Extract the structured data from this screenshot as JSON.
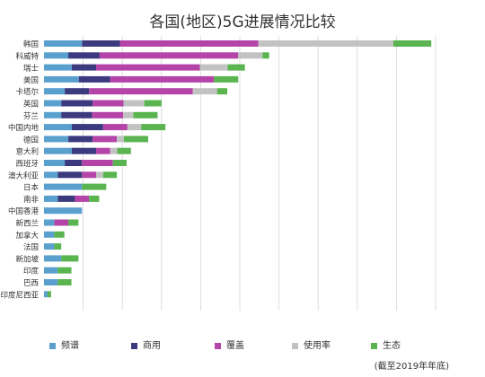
{
  "chart_data": {
    "type": "bar",
    "orientation": "horizontal",
    "stacked": true,
    "title": "各国(地区)5G进展情况比较",
    "source": "(截至2019年年底)",
    "grid": true,
    "legend_position": "bottom",
    "categories": [
      "韩国",
      "科威特",
      "瑞士",
      "美国",
      "卡塔尔",
      "英国",
      "芬兰",
      "中国内地",
      "德国",
      "意大利",
      "西班牙",
      "澳大利亚",
      "日本",
      "南非",
      "中国香港",
      "新西兰",
      "加拿大",
      "法国",
      "新加坡",
      "印度",
      "巴西",
      "印度尼西亚"
    ],
    "series": [
      {
        "name": "频谱",
        "color": "#5aa0cf",
        "values": [
          9.7,
          6.2,
          7.1,
          8.9,
          5.3,
          4.4,
          4.4,
          7.1,
          6.2,
          7.1,
          5.3,
          3.5,
          9.7,
          3.5,
          9.7,
          2.6,
          2.6,
          2.6,
          4.4,
          3.5,
          3.5,
          0.9
        ]
      },
      {
        "name": "商用",
        "color": "#3b3a7e",
        "values": [
          9.7,
          8.0,
          6.2,
          8.0,
          6.2,
          8.0,
          7.9,
          8.0,
          6.2,
          6.2,
          4.4,
          6.2,
          0,
          4.4,
          0,
          0,
          0,
          0,
          0,
          0,
          0,
          0
        ]
      },
      {
        "name": "覆盖",
        "color": "#b444a8",
        "values": [
          35.3,
          35.4,
          26.5,
          26.5,
          26.5,
          7.9,
          7.9,
          6.2,
          6.2,
          3.6,
          7.9,
          3.6,
          0,
          3.6,
          0,
          3.6,
          0,
          0,
          0,
          0,
          0,
          0
        ]
      },
      {
        "name": "使用率",
        "color": "#c2c2c2",
        "values": [
          34.5,
          6.2,
          7.1,
          0,
          6.2,
          5.3,
          2.6,
          3.5,
          1.8,
          1.8,
          0,
          1.8,
          0,
          0,
          0,
          0,
          0,
          0,
          0,
          0,
          0,
          0
        ]
      },
      {
        "name": "生态",
        "color": "#5ab550",
        "values": [
          9.7,
          1.7,
          4.4,
          6.2,
          2.6,
          4.4,
          6.2,
          6.2,
          6.2,
          3.5,
          3.5,
          3.5,
          6.2,
          2.6,
          0,
          2.6,
          2.6,
          1.8,
          4.4,
          3.5,
          3.5,
          0.9
        ]
      }
    ],
    "xlim": [
      0,
      100
    ],
    "gridline_values": [
      10,
      20,
      30,
      40,
      50,
      60,
      70,
      80,
      90,
      100
    ]
  }
}
